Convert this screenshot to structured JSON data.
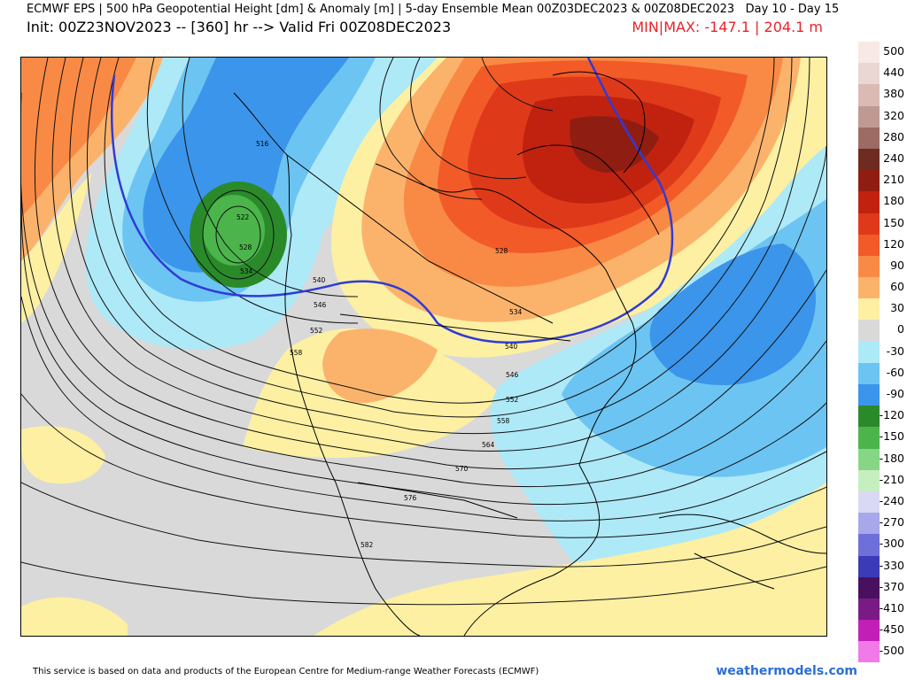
{
  "header": {
    "title": "ECMWF EPS | 500 hPa Geopotential Height [dm] & Anomaly [m] | 5-day Ensemble Mean 00Z03DEC2023 & 00Z08DEC2023",
    "day_range": "Day 10 - Day 15",
    "init": "Init: 00Z23NOV2023 -- [360] hr --> Valid Fri 00Z08DEC2023",
    "minmax": "MIN|MAX: -147.1 | 204.1 m"
  },
  "legend": [
    {
      "label": "500",
      "color": "#f8e9e6"
    },
    {
      "label": "440",
      "color": "#ead6d2"
    },
    {
      "label": "380",
      "color": "#d9bbb4"
    },
    {
      "label": "320",
      "color": "#bf9a92"
    },
    {
      "label": "280",
      "color": "#9c6b63"
    },
    {
      "label": "240",
      "color": "#6e2b22"
    },
    {
      "label": "210",
      "color": "#8f1d12"
    },
    {
      "label": "180",
      "color": "#c0220f"
    },
    {
      "label": "150",
      "color": "#de3a1a"
    },
    {
      "label": "120",
      "color": "#f25a28"
    },
    {
      "label": "90",
      "color": "#f98a45"
    },
    {
      "label": "60",
      "color": "#fbb36c"
    },
    {
      "label": "30",
      "color": "#fdf0a3"
    },
    {
      "label": "0",
      "color": "#d9d9d9"
    },
    {
      "label": "-30",
      "color": "#aee9f7"
    },
    {
      "label": "-60",
      "color": "#6cc4f2"
    },
    {
      "label": "-90",
      "color": "#3b95ea"
    },
    {
      "label": "-120",
      "color": "#2a8a2a"
    },
    {
      "label": "-150",
      "color": "#4bb54b"
    },
    {
      "label": "-180",
      "color": "#86d686"
    },
    {
      "label": "-210",
      "color": "#c6efc0"
    },
    {
      "label": "-240",
      "color": "#d9d9f5"
    },
    {
      "label": "-270",
      "color": "#a7a7ea"
    },
    {
      "label": "-300",
      "color": "#6f6fd9"
    },
    {
      "label": "-330",
      "color": "#3b3bb8"
    },
    {
      "label": "-370",
      "color": "#4a1060"
    },
    {
      "label": "-410",
      "color": "#7a1a85"
    },
    {
      "label": "-450",
      "color": "#c21fb8"
    },
    {
      "label": "-500",
      "color": "#f07ae8"
    }
  ],
  "contour_labels": [
    "516",
    "522",
    "528",
    "534",
    "540",
    "546",
    "552",
    "558",
    "528",
    "534",
    "540",
    "546",
    "552",
    "558",
    "564",
    "570",
    "576",
    "582"
  ],
  "footer": {
    "attribution": "This service is based on data and products of the European Centre for Medium-range Weather Forecasts (ECMWF)",
    "brand": "weathermodels.com"
  }
}
